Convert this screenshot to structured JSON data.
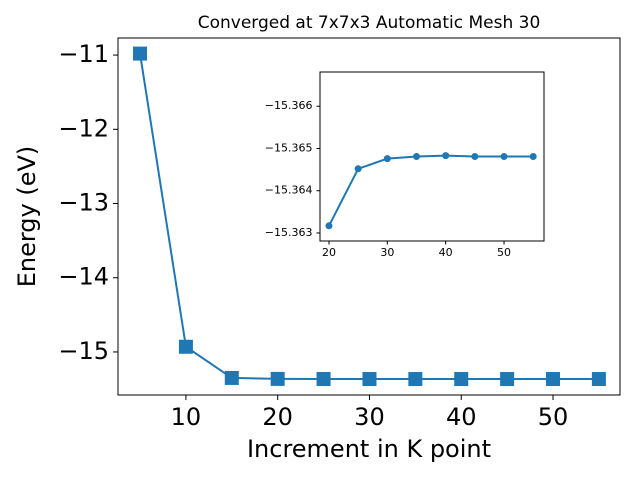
{
  "chart_data": [
    {
      "type": "line",
      "title": "Converged at 7x7x3 Automatic Mesh 30",
      "x_label": "Increment in K point",
      "y_label": "Energy (eV)",
      "x": [
        5,
        10,
        15,
        20,
        25,
        30,
        35,
        40,
        45,
        50,
        55
      ],
      "series": [
        {
          "color": "#1f77b4",
          "marker": "square",
          "values": [
            -10.98,
            -14.93,
            -15.35,
            -15.363,
            -15.3645,
            -15.3648,
            -15.3648,
            -15.3648,
            -15.3648,
            -15.3648,
            -15.3648
          ]
        }
      ],
      "xlim": [
        2.6,
        57.3
      ],
      "ylim": [
        -15.58,
        -10.77
      ],
      "xticks": [
        10,
        20,
        30,
        40,
        50
      ],
      "yticks": [
        {
          "value": -15,
          "label": "−15"
        },
        {
          "value": -14,
          "label": "−14"
        },
        {
          "value": -13,
          "label": "−13"
        },
        {
          "value": -12,
          "label": "−12"
        },
        {
          "value": -11,
          "label": "−11"
        }
      ]
    },
    {
      "type": "line",
      "x": [
        20,
        25,
        30,
        35,
        40,
        45,
        50,
        55
      ],
      "series": [
        {
          "color": "#1f77b4",
          "marker": "circle",
          "values": [
            -15.36317,
            -15.36452,
            -15.36476,
            -15.36481,
            -15.36483,
            -15.36481,
            -15.36481,
            -15.36481
          ]
        }
      ],
      "xlim": [
        18.46,
        56.85
      ],
      "ylim": [
        -15.36281,
        -15.36681
      ],
      "xticks": [
        20,
        30,
        40,
        50
      ],
      "yticks": [
        {
          "value": -15.363,
          "label": "−15.363"
        },
        {
          "value": -15.364,
          "label": "−15.364"
        },
        {
          "value": -15.365,
          "label": "−15.365"
        },
        {
          "value": -15.366,
          "label": "−15.366"
        }
      ]
    }
  ]
}
